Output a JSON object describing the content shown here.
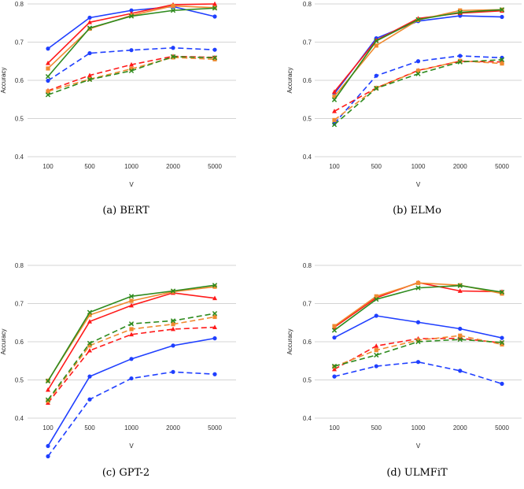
{
  "colors": {
    "blue": "#1f3fff",
    "red": "#ff1a1a",
    "orange": "#f08a30",
    "green": "#2e8b1e",
    "grid": "#d4d4d4"
  },
  "chart_data": [
    {
      "type": "line",
      "caption": "(a) BERT",
      "xlabel": "V",
      "ylabel": "Accuracy",
      "categories": [
        "100",
        "500",
        "1000",
        "2000",
        "5000"
      ],
      "ylim": [
        0.4,
        0.8
      ],
      "yticks": [
        "0.4",
        "0.5",
        "0.6",
        "0.7",
        "0.8"
      ],
      "series": [
        {
          "color": "blue",
          "style": "solid",
          "marker": "circle",
          "values": [
            0.683,
            0.764,
            0.783,
            0.793,
            0.767
          ]
        },
        {
          "color": "red",
          "style": "solid",
          "marker": "triangle",
          "values": [
            0.645,
            0.752,
            0.775,
            0.798,
            0.8
          ]
        },
        {
          "color": "orange",
          "style": "solid",
          "marker": "square",
          "values": [
            0.631,
            0.735,
            0.77,
            0.795,
            0.79
          ]
        },
        {
          "color": "green",
          "style": "solid",
          "marker": "x",
          "values": [
            0.61,
            0.737,
            0.768,
            0.783,
            0.789
          ]
        },
        {
          "color": "blue",
          "style": "dashed",
          "marker": "circle",
          "values": [
            0.599,
            0.671,
            0.679,
            0.685,
            0.68
          ]
        },
        {
          "color": "red",
          "style": "dashed",
          "marker": "triangle",
          "values": [
            0.573,
            0.613,
            0.641,
            0.663,
            0.66
          ]
        },
        {
          "color": "orange",
          "style": "dashed",
          "marker": "square",
          "values": [
            0.571,
            0.603,
            0.63,
            0.66,
            0.655
          ]
        },
        {
          "color": "green",
          "style": "dashed",
          "marker": "x",
          "values": [
            0.562,
            0.602,
            0.625,
            0.662,
            0.659
          ]
        }
      ]
    },
    {
      "type": "line",
      "caption": "(b) ELMo",
      "xlabel": "V",
      "ylabel": "Accuracy",
      "categories": [
        "100",
        "500",
        "1000",
        "2000",
        "5000"
      ],
      "ylim": [
        0.4,
        0.8
      ],
      "yticks": [
        "0.4",
        "0.5",
        "0.6",
        "0.7",
        "0.8"
      ],
      "series": [
        {
          "color": "blue",
          "style": "solid",
          "marker": "circle",
          "values": [
            0.565,
            0.71,
            0.755,
            0.769,
            0.766
          ]
        },
        {
          "color": "red",
          "style": "solid",
          "marker": "triangle",
          "values": [
            0.57,
            0.705,
            0.762,
            0.776,
            0.782
          ]
        },
        {
          "color": "orange",
          "style": "solid",
          "marker": "square",
          "values": [
            0.558,
            0.691,
            0.758,
            0.783,
            0.785
          ]
        },
        {
          "color": "green",
          "style": "solid",
          "marker": "x",
          "values": [
            0.549,
            0.703,
            0.759,
            0.778,
            0.785
          ]
        },
        {
          "color": "blue",
          "style": "dashed",
          "marker": "circle",
          "values": [
            0.487,
            0.612,
            0.65,
            0.664,
            0.659
          ]
        },
        {
          "color": "red",
          "style": "dashed",
          "marker": "triangle",
          "values": [
            0.519,
            0.58,
            0.626,
            0.65,
            0.648
          ]
        },
        {
          "color": "orange",
          "style": "dashed",
          "marker": "square",
          "values": [
            0.496,
            0.58,
            0.625,
            0.651,
            0.644
          ]
        },
        {
          "color": "green",
          "style": "dashed",
          "marker": "x",
          "values": [
            0.484,
            0.579,
            0.617,
            0.648,
            0.654
          ]
        }
      ]
    },
    {
      "type": "line",
      "caption": "(c) GPT-2",
      "xlabel": "V",
      "ylabel": "Accuracy",
      "categories": [
        "100",
        "500",
        "1000",
        "2000",
        "5000"
      ],
      "ylim": [
        0.4,
        0.8
      ],
      "yticks": [
        "0.4",
        "0.5",
        "0.6",
        "0.7",
        "0.8"
      ],
      "series": [
        {
          "color": "blue",
          "style": "solid",
          "marker": "circle",
          "values": [
            0.327,
            0.509,
            0.555,
            0.59,
            0.609
          ]
        },
        {
          "color": "red",
          "style": "solid",
          "marker": "triangle",
          "values": [
            0.474,
            0.653,
            0.695,
            0.728,
            0.714
          ]
        },
        {
          "color": "orange",
          "style": "solid",
          "marker": "square",
          "values": [
            0.498,
            0.67,
            0.707,
            0.731,
            0.744
          ]
        },
        {
          "color": "green",
          "style": "solid",
          "marker": "x",
          "values": [
            0.497,
            0.677,
            0.719,
            0.733,
            0.748
          ]
        },
        {
          "color": "blue",
          "style": "dashed",
          "marker": "circle",
          "values": [
            0.3,
            0.449,
            0.504,
            0.521,
            0.515
          ]
        },
        {
          "color": "red",
          "style": "dashed",
          "marker": "triangle",
          "values": [
            0.44,
            0.577,
            0.619,
            0.633,
            0.638
          ]
        },
        {
          "color": "orange",
          "style": "dashed",
          "marker": "square",
          "values": [
            0.445,
            0.59,
            0.633,
            0.646,
            0.665
          ]
        },
        {
          "color": "green",
          "style": "dashed",
          "marker": "x",
          "values": [
            0.448,
            0.596,
            0.647,
            0.655,
            0.674
          ]
        }
      ]
    },
    {
      "type": "line",
      "caption": "(d) ULMFiT",
      "xlabel": "V",
      "ylabel": "Accuracy",
      "categories": [
        "100",
        "500",
        "1000",
        "2000",
        "5000"
      ],
      "ylim": [
        0.4,
        0.8
      ],
      "yticks": [
        "0.4",
        "0.5",
        "0.6",
        "0.7",
        "0.8"
      ],
      "series": [
        {
          "color": "blue",
          "style": "solid",
          "marker": "circle",
          "values": [
            0.611,
            0.668,
            0.651,
            0.634,
            0.61
          ]
        },
        {
          "color": "red",
          "style": "solid",
          "marker": "triangle",
          "values": [
            0.638,
            0.715,
            0.755,
            0.733,
            0.731
          ]
        },
        {
          "color": "orange",
          "style": "solid",
          "marker": "square",
          "values": [
            0.641,
            0.719,
            0.754,
            0.748,
            0.726
          ]
        },
        {
          "color": "green",
          "style": "solid",
          "marker": "x",
          "values": [
            0.63,
            0.711,
            0.741,
            0.747,
            0.73
          ]
        },
        {
          "color": "blue",
          "style": "dashed",
          "marker": "circle",
          "values": [
            0.509,
            0.536,
            0.547,
            0.524,
            0.49
          ]
        },
        {
          "color": "red",
          "style": "dashed",
          "marker": "triangle",
          "values": [
            0.528,
            0.589,
            0.608,
            0.609,
            0.597
          ]
        },
        {
          "color": "orange",
          "style": "dashed",
          "marker": "square",
          "values": [
            0.535,
            0.578,
            0.604,
            0.616,
            0.593
          ]
        },
        {
          "color": "green",
          "style": "dashed",
          "marker": "x",
          "values": [
            0.536,
            0.565,
            0.6,
            0.606,
            0.598
          ]
        }
      ]
    }
  ]
}
